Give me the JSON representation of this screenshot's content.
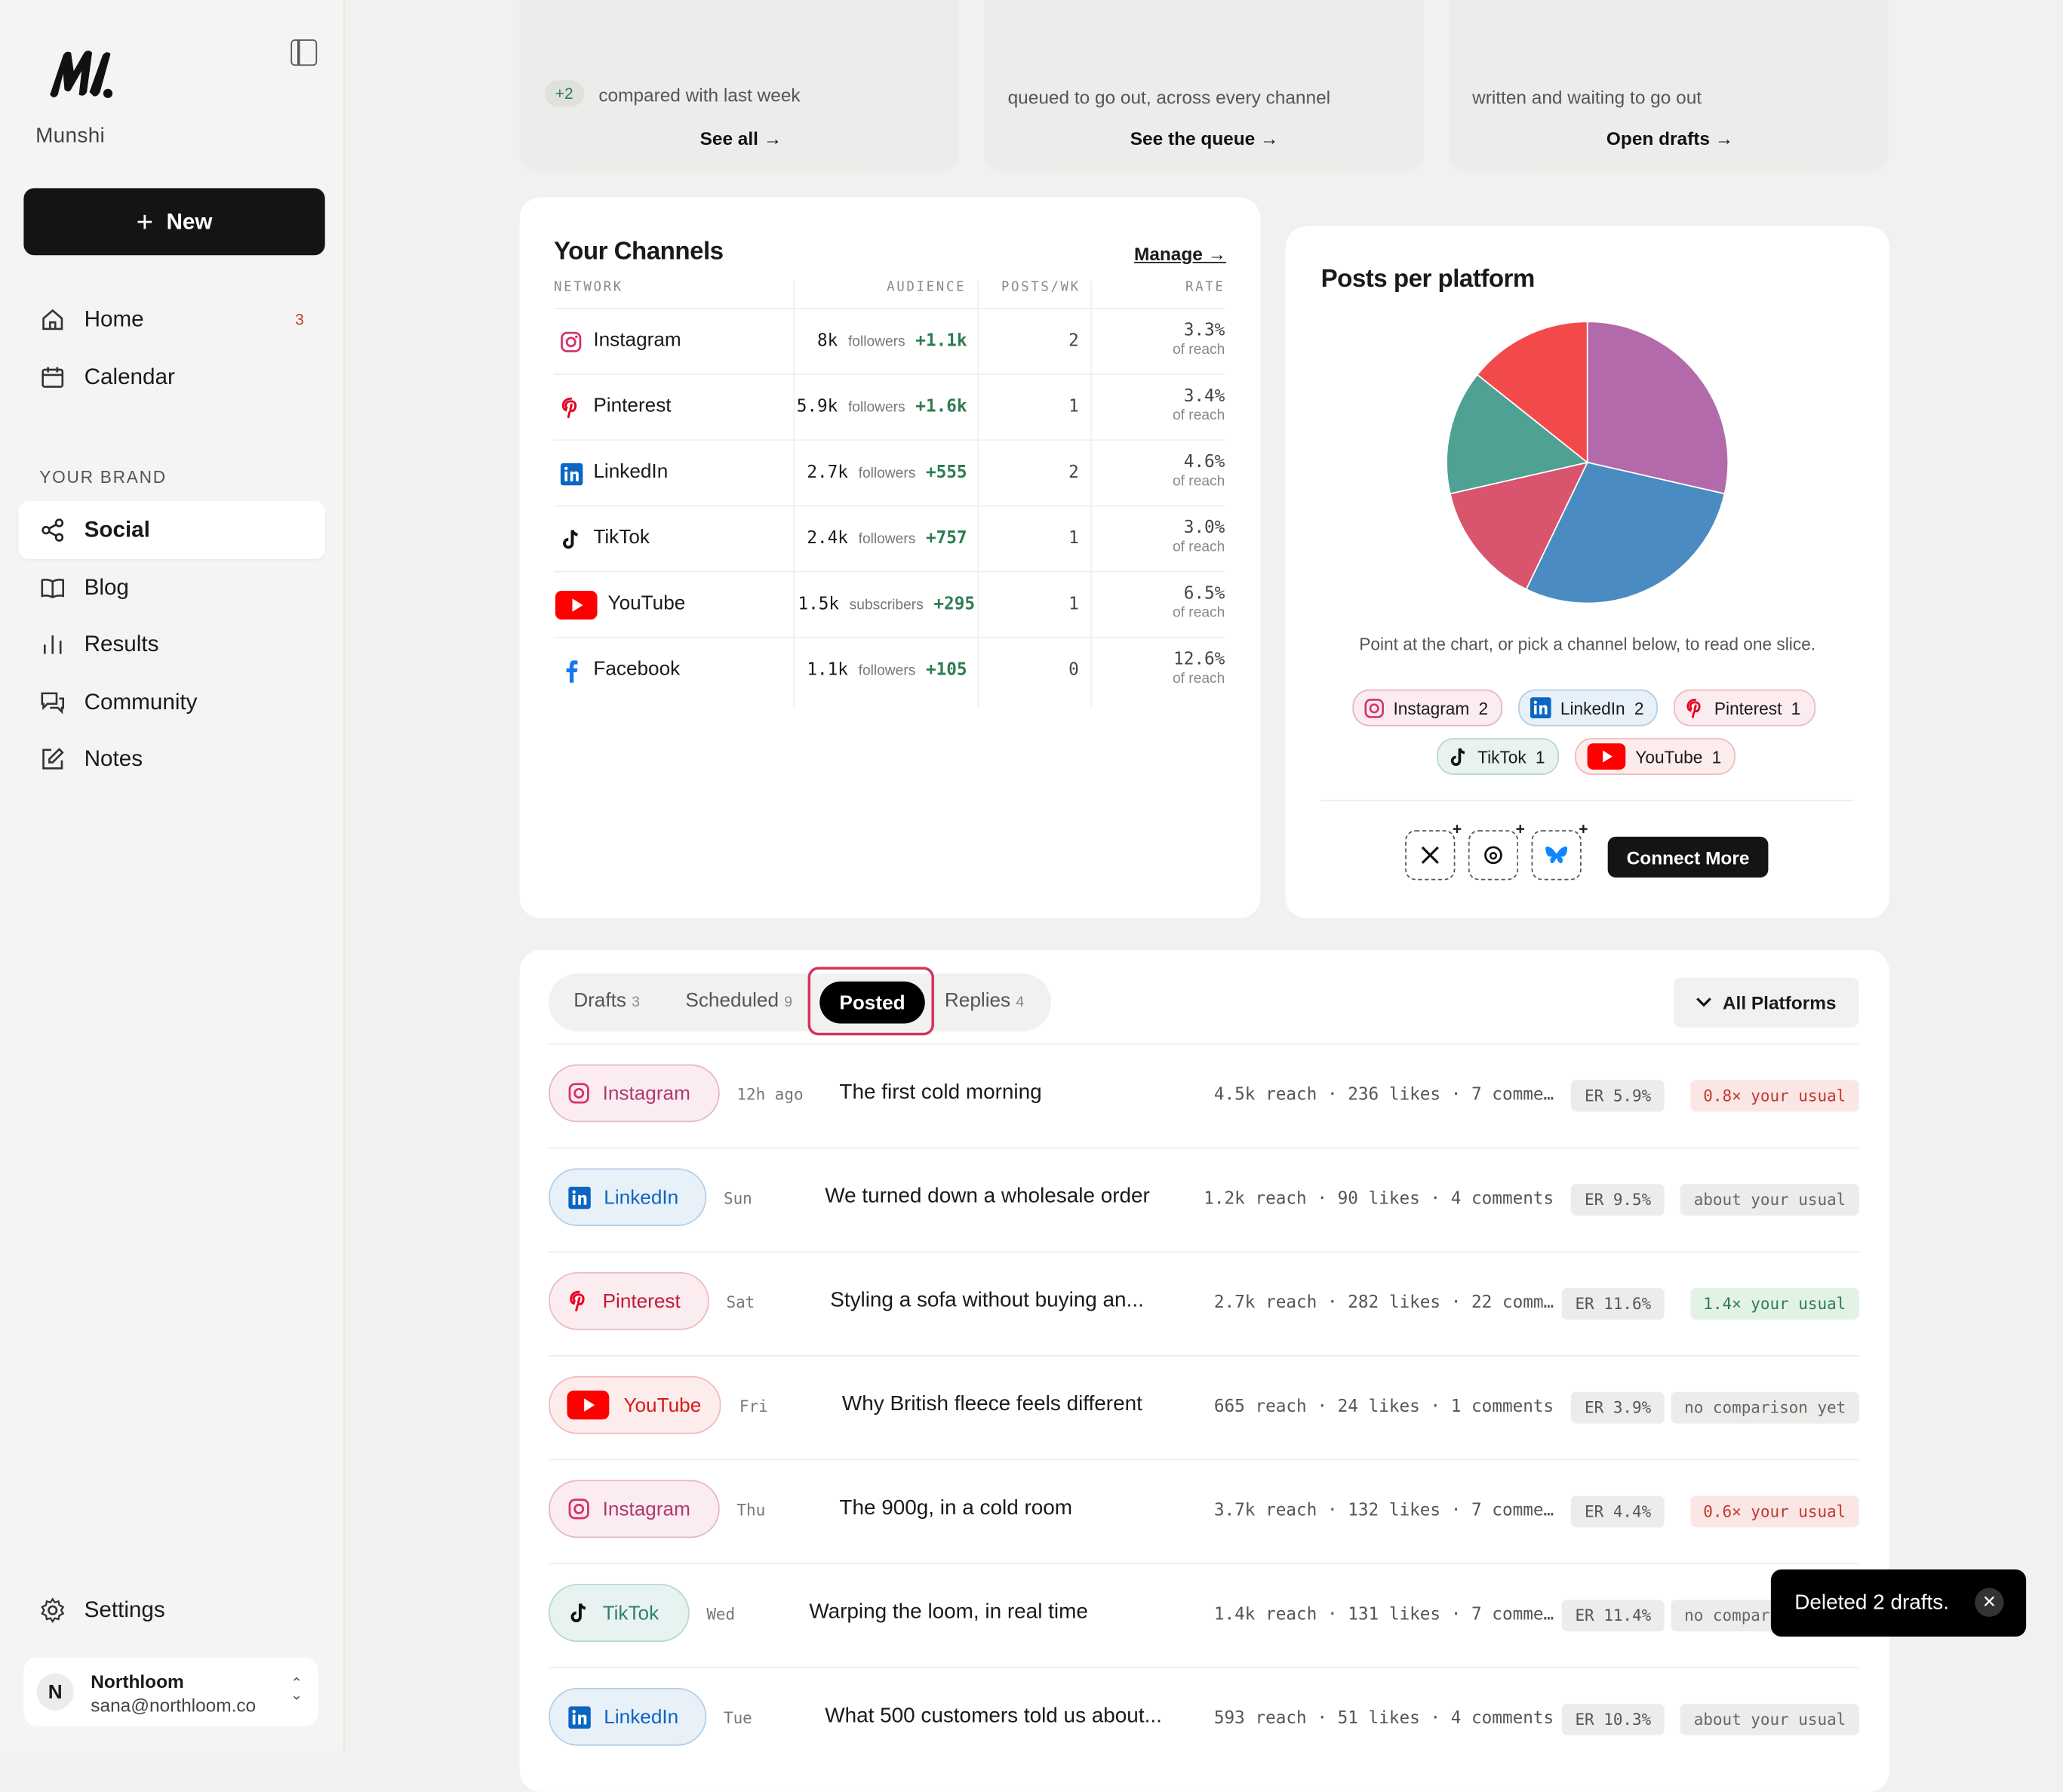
{
  "sidebar": {
    "brand": "Munshi",
    "new_label": "New",
    "nav": [
      {
        "label": "Home",
        "badge": "3"
      },
      {
        "label": "Calendar"
      }
    ],
    "section_label": "YOUR BRAND",
    "brand_nav": [
      {
        "label": "Social"
      },
      {
        "label": "Blog"
      },
      {
        "label": "Results"
      },
      {
        "label": "Community"
      },
      {
        "label": "Notes"
      }
    ],
    "settings_label": "Settings",
    "account": {
      "initial": "N",
      "name": "Northloom",
      "email": "sana@northloom.co"
    }
  },
  "top_cards": [
    {
      "delta": "+2",
      "text": "compared with last week",
      "link": "See all →"
    },
    {
      "text": "queued to go out, across every channel",
      "link": "See the queue →"
    },
    {
      "text": "written and waiting to go out",
      "link": "Open drafts →"
    }
  ],
  "channels": {
    "title": "Your Channels",
    "manage": "Manage →",
    "headers": {
      "network": "NETWORK",
      "audience": "AUDIENCE",
      "posts": "POSTS/WK",
      "rate": "RATE"
    },
    "rows": [
      {
        "name": "Instagram",
        "aud": "8k",
        "aud_label": "followers",
        "inc": "+1.1k",
        "posts": "2",
        "rate": "3.3%",
        "rate_label": "of reach"
      },
      {
        "name": "Pinterest",
        "aud": "5.9k",
        "aud_label": "followers",
        "inc": "+1.6k",
        "posts": "1",
        "rate": "3.4%",
        "rate_label": "of reach"
      },
      {
        "name": "LinkedIn",
        "aud": "2.7k",
        "aud_label": "followers",
        "inc": "+555",
        "posts": "2",
        "rate": "4.6%",
        "rate_label": "of reach"
      },
      {
        "name": "TikTok",
        "aud": "2.4k",
        "aud_label": "followers",
        "inc": "+757",
        "posts": "1",
        "rate": "3.0%",
        "rate_label": "of reach"
      },
      {
        "name": "YouTube",
        "aud": "1.5k",
        "aud_label": "subscribers",
        "inc": "+295",
        "posts": "1",
        "rate": "6.5%",
        "rate_label": "of reach"
      },
      {
        "name": "Facebook",
        "aud": "1.1k",
        "aud_label": "followers",
        "inc": "+105",
        "posts": "0",
        "rate": "12.6%",
        "rate_label": "of reach"
      }
    ]
  },
  "pie": {
    "title": "Posts per platform",
    "note": "Point at the chart, or pick a channel below, to read one slice.",
    "connect_label": "Connect More"
  },
  "chart_data": {
    "type": "pie",
    "title": "Posts per platform",
    "categories": [
      "Instagram",
      "LinkedIn",
      "Pinterest",
      "TikTok",
      "YouTube"
    ],
    "values": [
      2,
      2,
      1,
      1,
      1
    ],
    "colors": [
      "#b36aab",
      "#4a8bc2",
      "#d9556e",
      "#4fa193",
      "#f24a4a"
    ]
  },
  "pills": [
    {
      "name": "Instagram",
      "count": "2"
    },
    {
      "name": "LinkedIn",
      "count": "2"
    },
    {
      "name": "Pinterest",
      "count": "1"
    },
    {
      "name": "TikTok",
      "count": "1"
    },
    {
      "name": "YouTube",
      "count": "1"
    }
  ],
  "tabs": [
    {
      "label": "Drafts",
      "count": "3"
    },
    {
      "label": "Scheduled",
      "count": "9"
    },
    {
      "label": "Posted"
    },
    {
      "label": "Replies",
      "count": "4"
    }
  ],
  "filter_label": "All Platforms",
  "posts": [
    {
      "net": "Instagram",
      "when": "12h ago",
      "title": "The first cold morning",
      "stats": "4.5k reach · 236 likes · 7 comme…",
      "er": "ER 5.9%",
      "cmp": "0.8× your usual"
    },
    {
      "net": "LinkedIn",
      "when": "Sun",
      "title": "We turned down a wholesale order",
      "stats": "1.2k reach · 90 likes · 4 comments",
      "er": "ER 9.5%",
      "cmp": "about your usual"
    },
    {
      "net": "Pinterest",
      "when": "Sat",
      "title": "Styling a sofa without buying an...",
      "stats": "2.7k reach · 282 likes · 22 comm…",
      "er": "ER 11.6%",
      "cmp": "1.4× your usual"
    },
    {
      "net": "YouTube",
      "when": "Fri",
      "title": "Why British fleece feels different",
      "stats": "665 reach · 24 likes · 1 comments",
      "er": "ER 3.9%",
      "cmp": "no comparison yet"
    },
    {
      "net": "Instagram",
      "when": "Thu",
      "title": "The 900g, in a cold room",
      "stats": "3.7k reach · 132 likes · 7 comme…",
      "er": "ER 4.4%",
      "cmp": "0.6× your usual"
    },
    {
      "net": "TikTok",
      "when": "Wed",
      "title": "Warping the loom, in real time",
      "stats": "1.4k reach · 131 likes · 7 comme…",
      "er": "ER 11.4%",
      "cmp": "no comparison yet"
    },
    {
      "net": "LinkedIn",
      "when": "Tue",
      "title": "What 500 customers told us about...",
      "stats": "593 reach · 51 likes · 4 comments",
      "er": "ER 10.3%",
      "cmp": "about your usual"
    }
  ],
  "toast": {
    "text": "Deleted 2 drafts."
  }
}
